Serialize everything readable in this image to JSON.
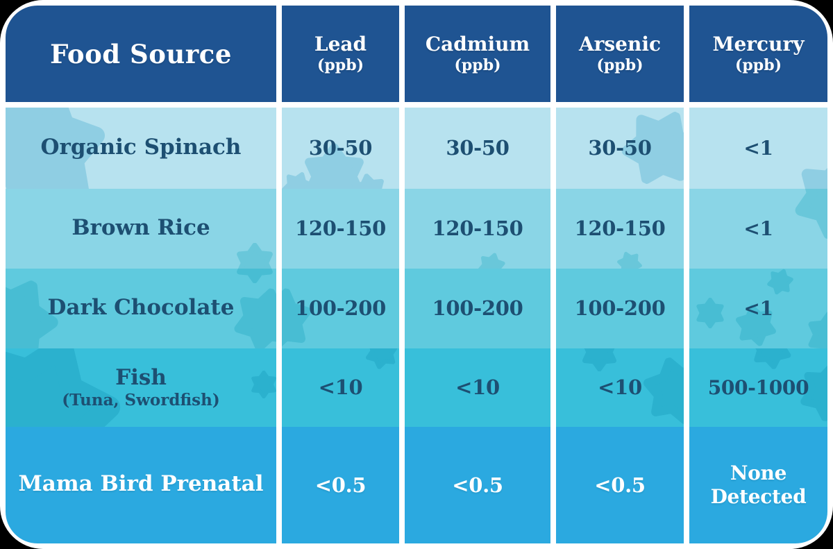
{
  "table": {
    "columns": [
      {
        "label": "Food Source",
        "unit": ""
      },
      {
        "label": "Lead",
        "unit": "(ppb)"
      },
      {
        "label": "Cadmium",
        "unit": "(ppb)"
      },
      {
        "label": "Arsenic",
        "unit": "(ppb)"
      },
      {
        "label": "Mercury",
        "unit": "(ppb)"
      }
    ],
    "rows": [
      {
        "label": "Organic Spinach",
        "sub": "",
        "values": [
          "30-50",
          "30-50",
          "30-50",
          "<1"
        ]
      },
      {
        "label": "Brown Rice",
        "sub": "",
        "values": [
          "120-150",
          "120-150",
          "120-150",
          "<1"
        ]
      },
      {
        "label": "Dark Chocolate",
        "sub": "",
        "values": [
          "100-200",
          "100-200",
          "100-200",
          "<1"
        ]
      },
      {
        "label": "Fish",
        "sub": "(Tuna, Swordfish)",
        "values": [
          "<10",
          "<10",
          "<10",
          "500-1000"
        ]
      },
      {
        "label": "Mama Bird Prenatal",
        "sub": "",
        "values": [
          "<0.5",
          "<0.5",
          "<0.5",
          "None Detected"
        ]
      }
    ]
  },
  "chart_data": {
    "type": "table",
    "columns": [
      "Food Source",
      "Lead (ppb)",
      "Cadmium (ppb)",
      "Arsenic (ppb)",
      "Mercury (ppb)"
    ],
    "rows": [
      [
        "Organic Spinach",
        "30-50",
        "30-50",
        "30-50",
        "<1"
      ],
      [
        "Brown Rice",
        "120-150",
        "120-150",
        "120-150",
        "<1"
      ],
      [
        "Dark Chocolate",
        "100-200",
        "100-200",
        "100-200",
        "<1"
      ],
      [
        "Fish (Tuna, Swordfish)",
        "<10",
        "<10",
        "<10",
        "500-1000"
      ],
      [
        "Mama Bird Prenatal",
        "<0.5",
        "<0.5",
        "<0.5",
        "None Detected"
      ]
    ]
  },
  "theme": {
    "header_bg": "#1F5492",
    "header_text": "#FFFFFF",
    "body_text": "#1D4F72",
    "last_row_text": "#FFFFFF",
    "row_backgrounds": [
      "#B7E2EF",
      "#8AD5E6",
      "#5FCADE",
      "#38BFDA",
      "#2BA9E0"
    ],
    "splat_colors": [
      "#8FCEE3",
      "#69C7DA",
      "#48BDD3",
      "#2BB1CE",
      "#2BA9E0"
    ],
    "card_bg": "#FFFFFF",
    "page_bg": "#000000"
  }
}
